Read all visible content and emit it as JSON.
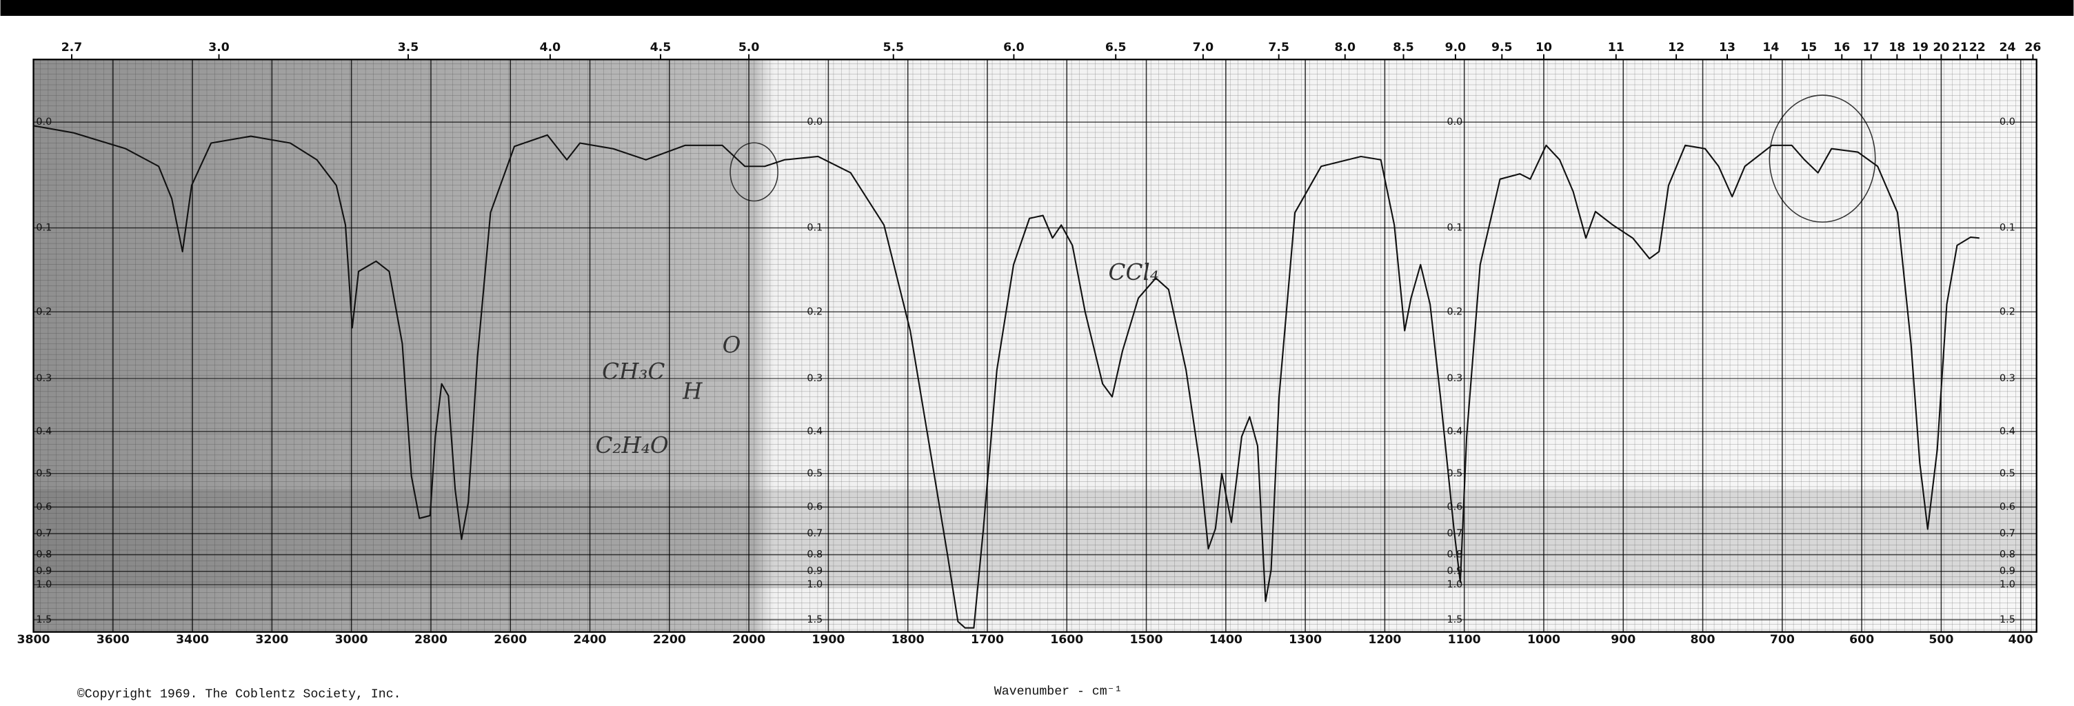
{
  "chart_data": {
    "type": "line",
    "x_label": "Wavenumber - cm⁻¹",
    "source": "©Copyright 1969. The Coblentz Society, Inc.",
    "annotations": [
      "CH₃C",
      "O",
      "H",
      "C₂H₄O",
      "CCl₄"
    ],
    "xlim": [
      3800,
      400
    ],
    "x_scale_change": 2000,
    "xticks": [
      3800,
      3600,
      3400,
      3200,
      3000,
      2800,
      2600,
      2400,
      2200,
      2000,
      1900,
      1800,
      1700,
      1600,
      1500,
      1400,
      1300,
      1200,
      1100,
      1000,
      900,
      800,
      700,
      600,
      500,
      400
    ],
    "x2ticks": [
      2.7,
      {
        "value": 3,
        "label": "3.0"
      },
      3.5,
      {
        "value": 4,
        "label": "4.0"
      },
      4.5,
      {
        "value": 5,
        "label": "5.0"
      },
      5.5,
      {
        "value": 6,
        "label": "6.0"
      },
      6.5,
      {
        "value": 7,
        "label": "7.0"
      },
      7.5,
      {
        "value": 8,
        "label": "8.0"
      },
      8.5,
      {
        "value": 9,
        "label": "9.0"
      },
      9.5,
      10,
      11,
      12,
      13,
      14,
      15,
      16,
      17,
      18,
      19,
      20,
      21,
      22,
      24,
      26
    ],
    "yscale": "absorbance",
    "ylim": [
      -0.05,
      2.1
    ],
    "yticks": [
      {
        "value": 0,
        "label": "0.0"
      },
      0.1,
      0.2,
      0.3,
      0.4,
      0.5,
      0.6,
      0.7,
      0.8,
      0.9,
      {
        "value": 1,
        "label": "1.0"
      },
      1.5
    ],
    "grid": true,
    "color": "#111111",
    "x": [
      3800,
      3700,
      3568,
      3485,
      3452,
      3425,
      3402,
      3353,
      3253,
      3154,
      3087,
      3038,
      3015,
      2998,
      2982,
      2938,
      2905,
      2872,
      2849,
      2829,
      2802,
      2789,
      2773,
      2756,
      2739,
      2723,
      2706,
      2683,
      2650,
      2590,
      2507,
      2458,
      2425,
      2342,
      2259,
      2160,
      2067,
      2010,
      1980,
      1955,
      1913,
      1872,
      1830,
      1797,
      1772,
      1750,
      1737,
      1728,
      1717,
      1705,
      1688,
      1667,
      1647,
      1630,
      1618,
      1607,
      1593,
      1577,
      1555,
      1543,
      1530,
      1510,
      1488,
      1472,
      1450,
      1433,
      1422,
      1413,
      1405,
      1393,
      1380,
      1370,
      1360,
      1350,
      1343,
      1333,
      1313,
      1280,
      1230,
      1205,
      1188,
      1175,
      1167,
      1155,
      1143,
      1130,
      1113,
      1105,
      1097,
      1080,
      1055,
      1030,
      1017,
      997,
      980,
      963,
      947,
      935,
      913,
      888,
      867,
      855,
      843,
      822,
      797,
      780,
      763,
      747,
      713,
      688,
      672,
      655,
      638,
      605,
      580,
      555,
      538,
      527,
      517,
      505,
      493,
      480,
      463,
      452
    ],
    "values": [
      0.003,
      0.009,
      0.023,
      0.039,
      0.07,
      0.126,
      0.057,
      0.018,
      0.012,
      0.018,
      0.033,
      0.057,
      0.097,
      0.222,
      0.149,
      0.137,
      0.149,
      0.245,
      0.507,
      0.64,
      0.63,
      0.411,
      0.309,
      0.33,
      0.545,
      0.725,
      0.585,
      0.266,
      0.084,
      0.021,
      0.011,
      0.033,
      0.018,
      0.023,
      0.033,
      0.02,
      0.02,
      0.039,
      0.039,
      0.033,
      0.03,
      0.045,
      0.097,
      0.226,
      0.441,
      0.804,
      1.55,
      1.8,
      1.8,
      0.682,
      0.286,
      0.141,
      0.09,
      0.087,
      0.111,
      0.097,
      0.119,
      0.2,
      0.309,
      0.332,
      0.256,
      0.182,
      0.157,
      0.171,
      0.286,
      0.472,
      0.77,
      0.68,
      0.5,
      0.655,
      0.411,
      0.37,
      0.432,
      1.17,
      0.89,
      0.332,
      0.084,
      0.039,
      0.03,
      0.033,
      0.097,
      0.226,
      0.182,
      0.141,
      0.19,
      0.332,
      0.682,
      0.98,
      0.411,
      0.141,
      0.051,
      0.046,
      0.051,
      0.02,
      0.033,
      0.063,
      0.111,
      0.083,
      0.097,
      0.111,
      0.134,
      0.126,
      0.057,
      0.02,
      0.023,
      0.039,
      0.068,
      0.039,
      0.02,
      0.02,
      0.033,
      0.045,
      0.023,
      0.026,
      0.039,
      0.084,
      0.245,
      0.472,
      0.682,
      0.441,
      0.19,
      0.119,
      0.11,
      0.111
    ]
  }
}
